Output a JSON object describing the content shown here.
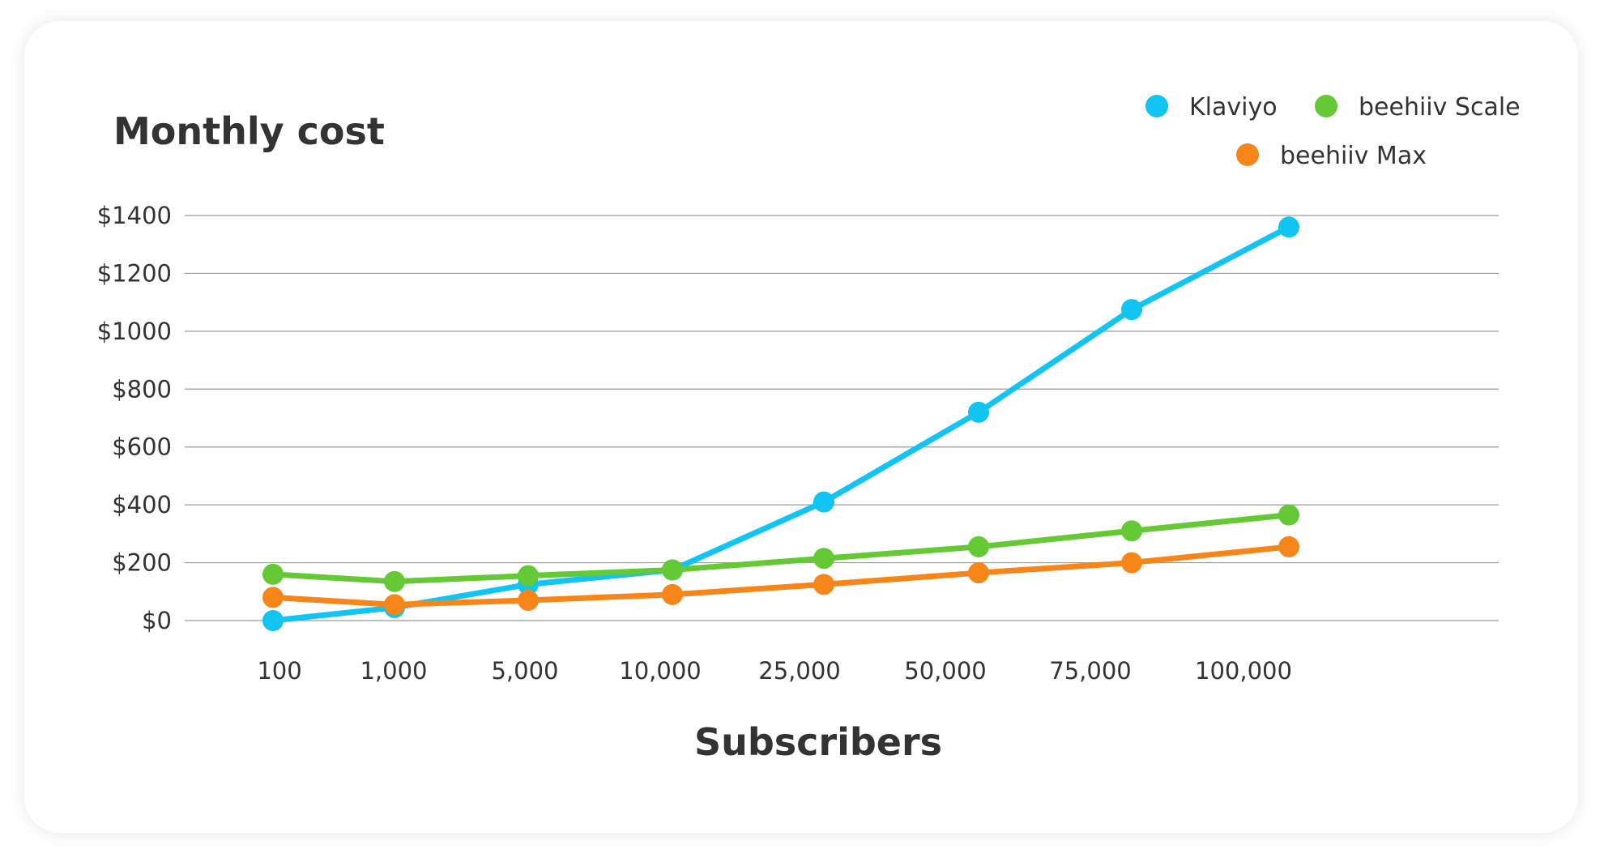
{
  "chart_data": {
    "type": "line",
    "title": "Monthly cost",
    "xlabel": "Subscribers",
    "ylabel": "",
    "categories": [
      "100",
      "1,000",
      "5,000",
      "10,000",
      "25,000",
      "50,000",
      "75,000",
      "100,000"
    ],
    "y_ticks": [
      "$0",
      "$200",
      "$400",
      "$600",
      "$800",
      "$1000",
      "$1200",
      "$1400"
    ],
    "ylim": [
      0,
      1400
    ],
    "grid": true,
    "legend_position": "top-right",
    "series": [
      {
        "name": "Klaviyo",
        "color": "#11c4f2",
        "values": [
          0,
          45,
          125,
          175,
          410,
          720,
          1075,
          1360
        ]
      },
      {
        "name": "beehiiv Scale",
        "color": "#64c935",
        "values": [
          160,
          135,
          155,
          175,
          215,
          255,
          310,
          365
        ]
      },
      {
        "name": "beehiiv Max",
        "color": "#f7861a",
        "values": [
          80,
          55,
          70,
          90,
          125,
          165,
          200,
          255
        ]
      }
    ]
  }
}
